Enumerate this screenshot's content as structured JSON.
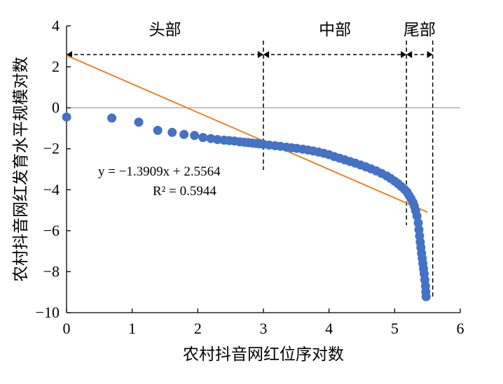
{
  "chart_data": {
    "type": "scatter",
    "xlabel": "农村抖音网红位序对数",
    "ylabel": "农村抖音网红发育水平规模对数",
    "xlim": [
      0,
      6
    ],
    "ylim": [
      -10,
      4
    ],
    "xticks": [
      "0",
      "1",
      "2",
      "3",
      "4",
      "5",
      "6"
    ],
    "yticks": [
      "4",
      "2",
      "0",
      "−2",
      "−4",
      "−6",
      "−8",
      "−10"
    ],
    "regions": [
      {
        "label": "头部",
        "x_start": 0,
        "x_end": 3.0
      },
      {
        "label": "中部",
        "x_start": 3.0,
        "x_end": 5.18
      },
      {
        "label": "尾部",
        "x_start": 5.18,
        "x_end": 5.58
      }
    ],
    "fit": {
      "slope": -1.3909,
      "intercept": 2.5564,
      "x_range": [
        0,
        5.5
      ],
      "equation": "y = −1.3909x + 2.5564",
      "r2_label": "R² = 0.5944"
    },
    "points": [
      [
        0.0,
        -0.45
      ],
      [
        0.69,
        -0.5
      ],
      [
        1.1,
        -0.7
      ],
      [
        1.39,
        -1.1
      ],
      [
        1.61,
        -1.2
      ],
      [
        1.79,
        -1.3
      ],
      [
        1.95,
        -1.35
      ],
      [
        2.08,
        -1.45
      ],
      [
        2.2,
        -1.5
      ],
      [
        2.3,
        -1.55
      ],
      [
        2.4,
        -1.58
      ],
      [
        2.48,
        -1.6
      ],
      [
        2.56,
        -1.62
      ],
      [
        2.64,
        -1.66
      ],
      [
        2.71,
        -1.68
      ],
      [
        2.77,
        -1.7
      ],
      [
        2.83,
        -1.72
      ],
      [
        2.89,
        -1.74
      ],
      [
        2.94,
        -1.76
      ],
      [
        3.0,
        -1.78
      ],
      [
        3.09,
        -1.82
      ],
      [
        3.18,
        -1.85
      ],
      [
        3.26,
        -1.88
      ],
      [
        3.35,
        -1.92
      ],
      [
        3.43,
        -1.95
      ],
      [
        3.51,
        -1.98
      ],
      [
        3.6,
        -2.02
      ],
      [
        3.68,
        -2.06
      ],
      [
        3.76,
        -2.11
      ],
      [
        3.84,
        -2.16
      ],
      [
        3.92,
        -2.22
      ],
      [
        4.0,
        -2.29
      ],
      [
        4.08,
        -2.38
      ],
      [
        4.16,
        -2.46
      ],
      [
        4.24,
        -2.54
      ],
      [
        4.32,
        -2.62
      ],
      [
        4.4,
        -2.7
      ],
      [
        4.48,
        -2.79
      ],
      [
        4.56,
        -2.88
      ],
      [
        4.64,
        -2.98
      ],
      [
        4.72,
        -3.08
      ],
      [
        4.8,
        -3.2
      ],
      [
        4.88,
        -3.33
      ],
      [
        4.94,
        -3.45
      ],
      [
        5.0,
        -3.58
      ],
      [
        5.05,
        -3.7
      ],
      [
        5.1,
        -3.84
      ],
      [
        5.15,
        -3.98
      ],
      [
        5.19,
        -4.12
      ],
      [
        5.22,
        -4.28
      ],
      [
        5.25,
        -4.44
      ],
      [
        5.28,
        -4.62
      ],
      [
        5.3,
        -4.8
      ],
      [
        5.32,
        -5.02
      ],
      [
        5.34,
        -5.28
      ],
      [
        5.36,
        -5.62
      ],
      [
        5.37,
        -5.95
      ],
      [
        5.38,
        -6.25
      ],
      [
        5.39,
        -6.55
      ],
      [
        5.4,
        -6.82
      ],
      [
        5.41,
        -7.1
      ],
      [
        5.42,
        -7.35
      ],
      [
        5.43,
        -7.6
      ],
      [
        5.44,
        -7.85
      ],
      [
        5.45,
        -8.1
      ],
      [
        5.46,
        -8.4
      ],
      [
        5.47,
        -8.7
      ],
      [
        5.475,
        -8.98
      ],
      [
        5.48,
        -9.22
      ]
    ]
  }
}
